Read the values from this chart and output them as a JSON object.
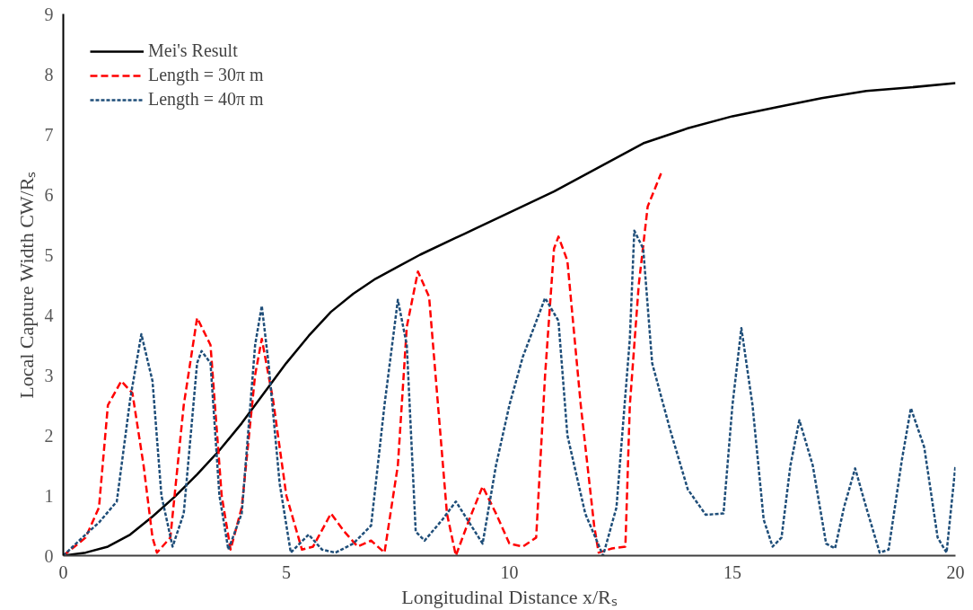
{
  "chart_data": {
    "type": "line",
    "xlabel": "Longitudinal Distance x/Rₛ",
    "ylabel": "Local Capture Width CW/Rₛ",
    "xlim": [
      0,
      20
    ],
    "ylim": [
      0,
      9
    ],
    "xticks": [
      0,
      5,
      10,
      15,
      20
    ],
    "yticks": [
      0,
      1,
      2,
      3,
      4,
      5,
      6,
      7,
      8,
      9
    ],
    "grid": false,
    "legend": "top left",
    "marker": "none",
    "series": [
      {
        "name": "Mei's Result",
        "color": "#000000",
        "line_style": "solid",
        "x": [
          0,
          0.5,
          1,
          1.5,
          2,
          2.5,
          3,
          3.5,
          4,
          4.5,
          5,
          5.5,
          6,
          6.5,
          7,
          7.5,
          8,
          9,
          10,
          11,
          12,
          13,
          14,
          15,
          16,
          17,
          18,
          19,
          20
        ],
        "values": [
          0,
          0.05,
          0.15,
          0.35,
          0.65,
          0.98,
          1.35,
          1.75,
          2.2,
          2.7,
          3.2,
          3.65,
          4.05,
          4.35,
          4.6,
          4.8,
          5.0,
          5.35,
          5.7,
          6.05,
          6.45,
          6.85,
          7.1,
          7.3,
          7.45,
          7.6,
          7.72,
          7.78,
          7.85
        ]
      },
      {
        "name": "Length = 30π m",
        "color": "#ff0000",
        "line_style": "dashed",
        "x": [
          0,
          0.5,
          0.8,
          1.0,
          1.3,
          1.55,
          1.8,
          2.0,
          2.1,
          2.4,
          2.7,
          3.0,
          3.3,
          3.55,
          3.75,
          4.0,
          4.3,
          4.45,
          4.7,
          5.0,
          5.35,
          5.6,
          6.0,
          6.3,
          6.6,
          6.9,
          7.2,
          7.5,
          7.7,
          7.95,
          8.2,
          8.4,
          8.6,
          8.8,
          9.1,
          9.4,
          9.7,
          10.0,
          10.3,
          10.6,
          10.8,
          11.0,
          11.1,
          11.3,
          11.6,
          11.9,
          12.0,
          12.3,
          12.6,
          12.7,
          12.9,
          13.1,
          13.4
        ],
        "values": [
          0,
          0.3,
          0.8,
          2.5,
          2.9,
          2.7,
          1.5,
          0.3,
          0.05,
          0.3,
          2.5,
          3.95,
          3.5,
          1.0,
          0.1,
          0.8,
          3.0,
          3.6,
          2.6,
          1.0,
          0.1,
          0.15,
          0.7,
          0.4,
          0.15,
          0.25,
          0.05,
          1.5,
          3.8,
          4.72,
          4.3,
          2.5,
          0.7,
          0.0,
          0.6,
          1.15,
          0.7,
          0.2,
          0.15,
          0.3,
          3.0,
          5.1,
          5.3,
          4.9,
          2.5,
          0.5,
          0.05,
          0.12,
          0.15,
          2.5,
          4.5,
          5.8,
          6.35
        ]
      },
      {
        "name": "Length = 40π m",
        "color": "#1f4e79",
        "line_style": "dotted",
        "x": [
          0,
          0.5,
          0.8,
          1.2,
          1.5,
          1.75,
          2.0,
          2.2,
          2.45,
          2.7,
          3.0,
          3.1,
          3.3,
          3.5,
          3.7,
          4.0,
          4.3,
          4.45,
          4.6,
          4.85,
          5.1,
          5.5,
          5.8,
          6.1,
          6.5,
          6.9,
          7.2,
          7.5,
          7.7,
          7.9,
          8.1,
          8.5,
          8.8,
          9.1,
          9.4,
          9.7,
          10.0,
          10.3,
          10.8,
          11.1,
          11.3,
          11.7,
          12.1,
          12.4,
          12.7,
          12.8,
          13.0,
          13.2,
          13.6,
          14.0,
          14.4,
          14.8,
          15.0,
          15.2,
          15.45,
          15.7,
          15.9,
          16.1,
          16.3,
          16.5,
          16.8,
          17.1,
          17.3,
          17.5,
          17.75,
          18.0,
          18.3,
          18.5,
          18.8,
          19.0,
          19.3,
          19.6,
          19.8,
          20.0
        ],
        "values": [
          0,
          0.35,
          0.55,
          0.9,
          2.6,
          3.68,
          2.9,
          1.0,
          0.15,
          0.7,
          3.2,
          3.4,
          3.2,
          1.0,
          0.1,
          0.7,
          3.5,
          4.15,
          3.2,
          1.2,
          0.05,
          0.35,
          0.1,
          0.05,
          0.2,
          0.5,
          2.5,
          4.25,
          3.5,
          0.4,
          0.25,
          0.6,
          0.9,
          0.55,
          0.2,
          1.5,
          2.5,
          3.3,
          4.28,
          3.9,
          2.0,
          0.7,
          0.0,
          0.8,
          3.6,
          5.4,
          5.1,
          3.2,
          2.1,
          1.1,
          0.68,
          0.7,
          2.5,
          3.78,
          2.5,
          0.6,
          0.15,
          0.3,
          1.5,
          2.25,
          1.5,
          0.2,
          0.12,
          0.8,
          1.45,
          0.8,
          0.05,
          0.1,
          1.6,
          2.45,
          1.8,
          0.3,
          0.05,
          1.5
        ]
      }
    ]
  }
}
